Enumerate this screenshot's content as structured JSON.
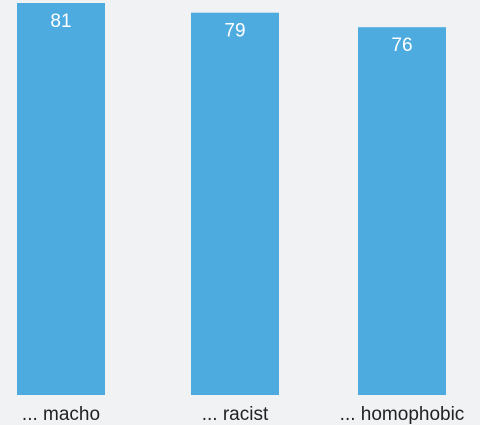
{
  "chart_data": {
    "type": "bar",
    "categories": [
      "... macho",
      "... racist",
      "... homophobic"
    ],
    "values": [
      81,
      79,
      76
    ],
    "data_labels": [
      "81",
      "79",
      "76"
    ],
    "title": "",
    "xlabel": "",
    "ylabel": "",
    "ylim": [
      0,
      81
    ],
    "grid": false,
    "legend": "none",
    "colors": {
      "bar": "#4eabe0",
      "background": "#f1f2f4",
      "label_text": "#222222",
      "value_text": "#ffffff"
    }
  }
}
